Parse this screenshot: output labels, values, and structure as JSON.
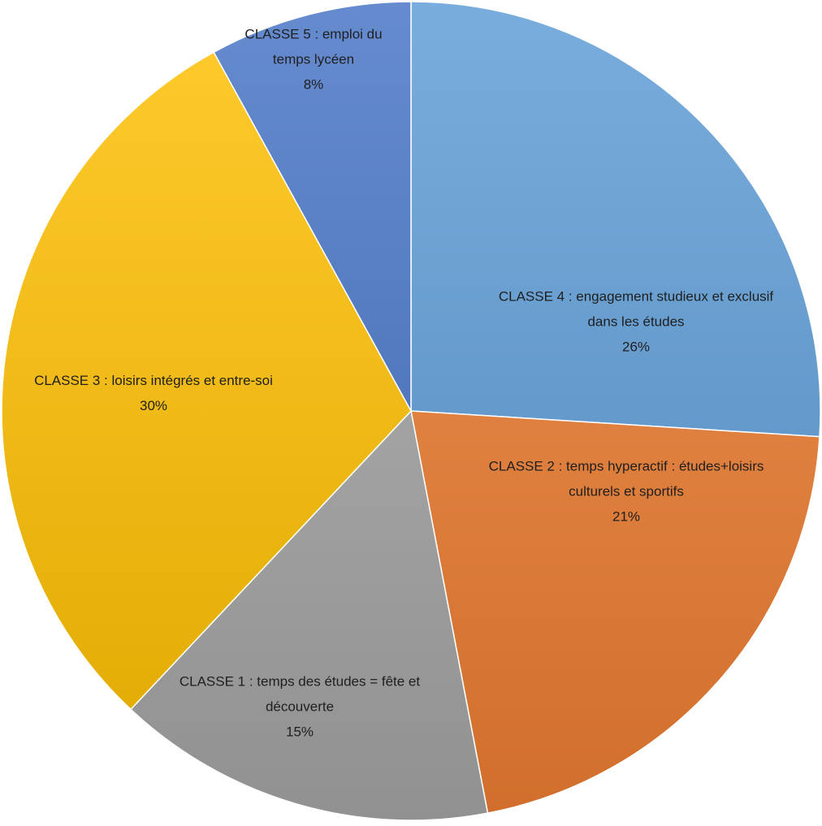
{
  "chart_data": {
    "type": "pie",
    "slices": [
      {
        "label_lines": [
          "CLASSE 4 : engagement studieux et exclusif",
          "dans les études"
        ],
        "value": 26,
        "value_label": "26%",
        "color": "#5b9bd5"
      },
      {
        "label_lines": [
          "CLASSE 2 : temps hyperactif : études+loisirs",
          "culturels et sportifs"
        ],
        "value": 21,
        "value_label": "21%",
        "color": "#ed7d31"
      },
      {
        "label_lines": [
          "CLASSE 1 : temps des études = fête et",
          "découverte"
        ],
        "value": 15,
        "value_label": "15%",
        "color": "#a5a5a5"
      },
      {
        "label_lines": [
          "CLASSE 3 : loisirs intégrés et entre-soi"
        ],
        "value": 30,
        "value_label": "30%",
        "color": "#ffc000"
      },
      {
        "label_lines": [
          "CLASSE 5 : emploi du",
          "temps lycéen"
        ],
        "value": 8,
        "value_label": "8%",
        "color": "#4472c4"
      }
    ]
  }
}
